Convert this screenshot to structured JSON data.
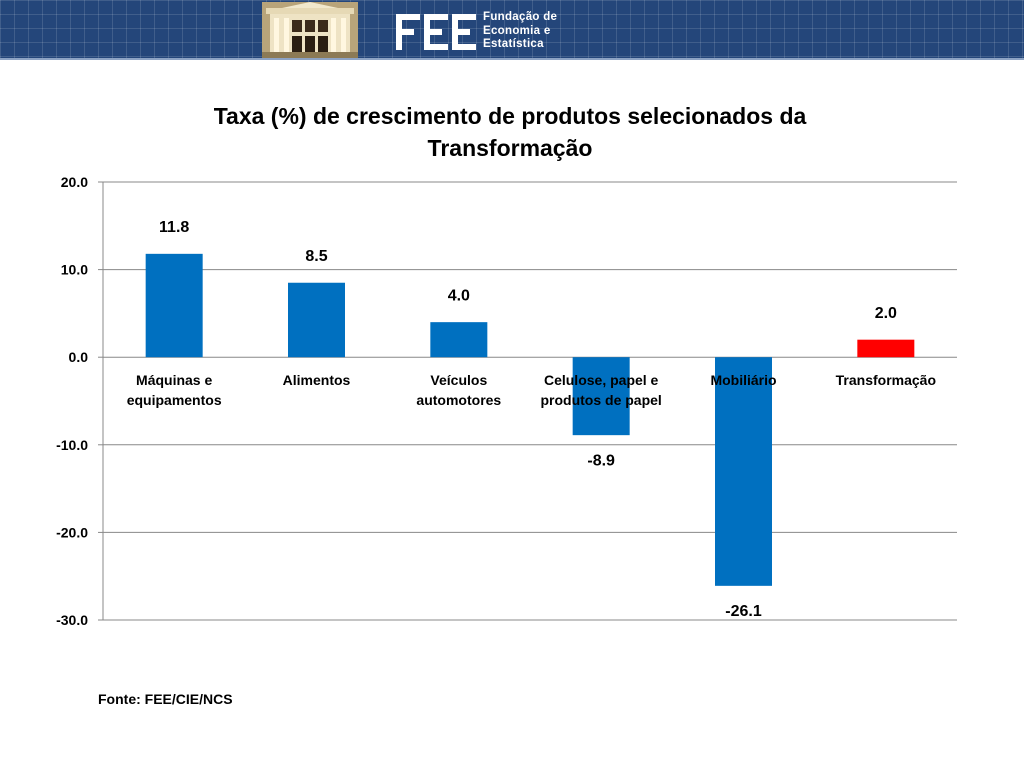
{
  "header": {
    "org_name_lines": [
      "Fundação de",
      "Economia e",
      "Estatística"
    ],
    "logo_text": "FEE",
    "colors": {
      "banner": "#24467a",
      "banner_grid": "#3b5c8f"
    }
  },
  "chart_data": {
    "type": "bar",
    "title_lines": [
      "Taxa (%) de crescimento de produtos selecionados da",
      "Transformação"
    ],
    "xlabel": "",
    "ylabel": "",
    "categories": [
      [
        "Máquinas e",
        "equipamentos"
      ],
      [
        "Alimentos"
      ],
      [
        "Veículos",
        "automotores"
      ],
      [
        "Celulose, papel e",
        "produtos de papel"
      ],
      [
        "Mobiliário"
      ],
      [
        "Transformação"
      ]
    ],
    "values": [
      11.8,
      8.5,
      4.0,
      -8.9,
      -26.1,
      2.0
    ],
    "value_labels": [
      "11.8",
      "8.5",
      "4.0",
      "-8.9",
      "-26.1",
      "2.0"
    ],
    "bar_colors": [
      "#0070c0",
      "#0070c0",
      "#0070c0",
      "#0070c0",
      "#0070c0",
      "#ff0000"
    ],
    "ylim": [
      -30,
      20
    ],
    "yticks": [
      20,
      10,
      0,
      -10,
      -20,
      -30
    ],
    "ytick_labels": [
      "20.0",
      "10.0",
      "0.0",
      "-10.0",
      "-20.0",
      "-30.0"
    ],
    "grid": true,
    "legend": "none"
  },
  "source": "Fonte: FEE/CIE/NCS"
}
